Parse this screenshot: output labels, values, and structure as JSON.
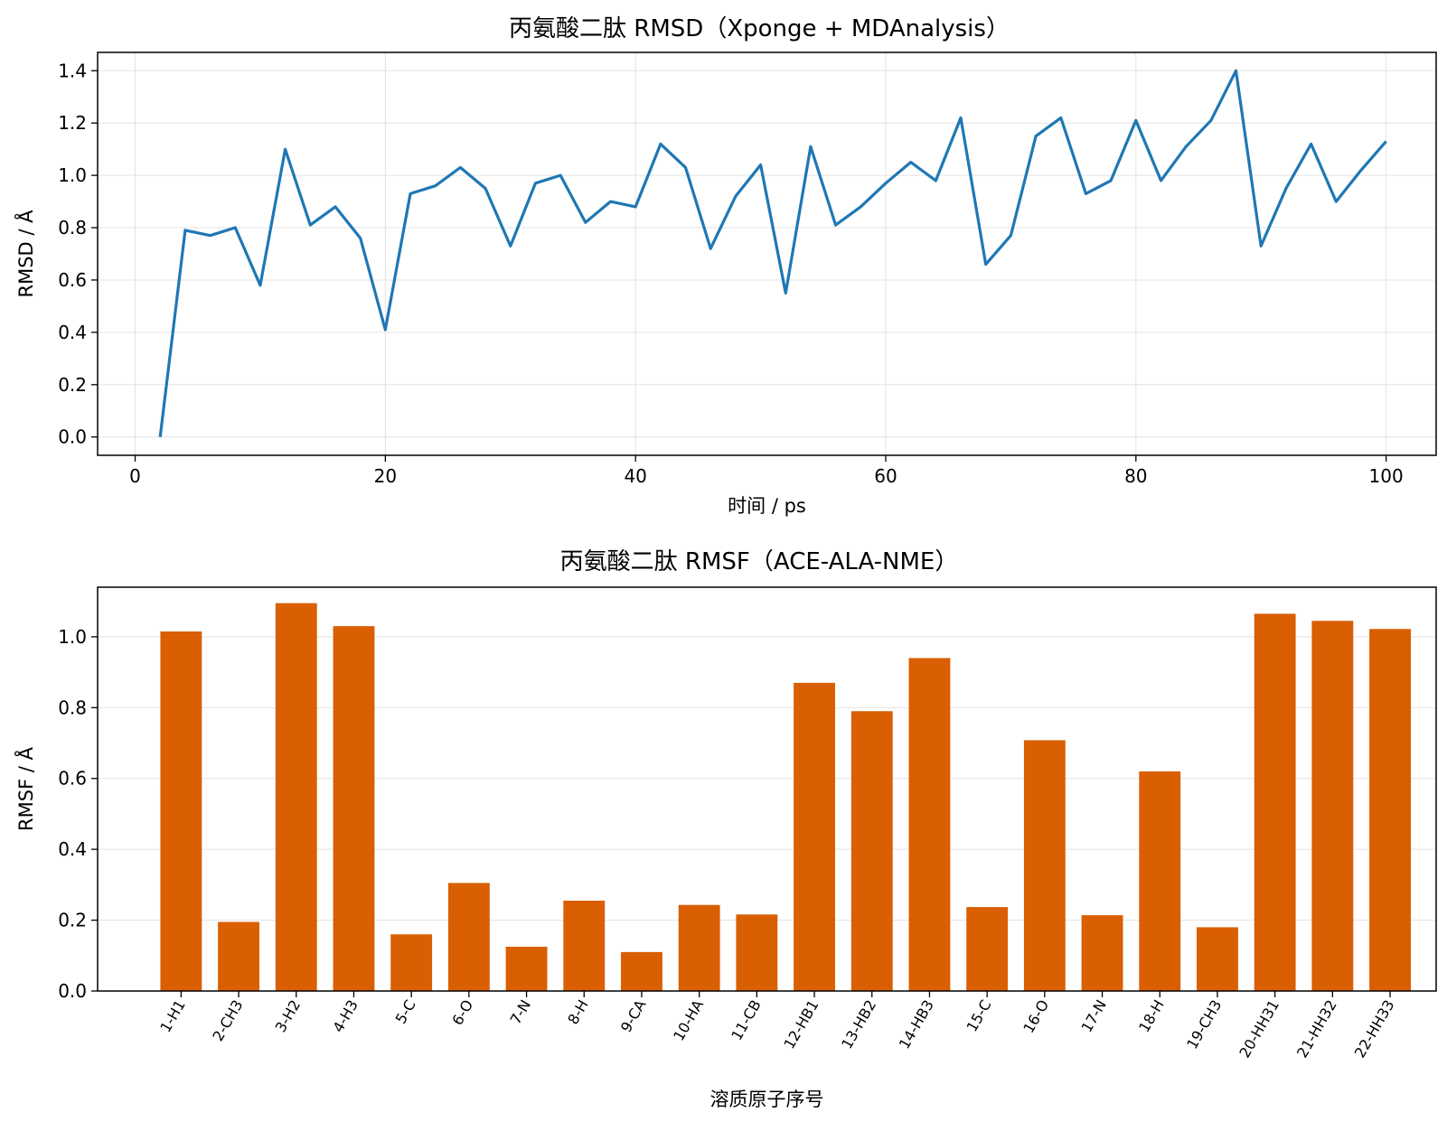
{
  "chart_data": [
    {
      "type": "line",
      "title": "丙氨酸二肽 RMSD（Xponge + MDAnalysis）",
      "xlabel": "时间 / ps",
      "ylabel": "RMSD / Å",
      "xlim": [
        -3,
        104
      ],
      "ylim": [
        -0.07,
        1.47
      ],
      "xticks": [
        0,
        20,
        40,
        60,
        80,
        100
      ],
      "yticks": [
        0.0,
        0.2,
        0.4,
        0.6,
        0.8,
        1.0,
        1.2,
        1.4
      ],
      "grid": true,
      "color": "#1f77b4",
      "x": [
        2,
        4,
        6,
        8,
        10,
        12,
        14,
        16,
        18,
        20,
        22,
        24,
        26,
        28,
        30,
        32,
        34,
        36,
        38,
        40,
        42,
        44,
        46,
        48,
        50,
        52,
        54,
        56,
        58,
        60,
        62,
        64,
        66,
        68,
        70,
        72,
        74,
        76,
        78,
        80,
        82,
        84,
        86,
        88,
        90,
        92,
        94,
        96,
        98,
        100
      ],
      "y": [
        0.0,
        0.79,
        0.77,
        0.8,
        0.58,
        1.1,
        0.81,
        0.88,
        0.76,
        0.41,
        0.93,
        0.96,
        1.03,
        0.95,
        0.73,
        0.97,
        1.0,
        0.82,
        0.9,
        0.88,
        1.12,
        1.03,
        0.72,
        0.92,
        1.04,
        0.55,
        1.11,
        0.81,
        0.88,
        0.97,
        1.05,
        0.98,
        1.22,
        0.66,
        0.77,
        1.15,
        1.22,
        0.93,
        0.98,
        1.21,
        0.98,
        1.11,
        1.21,
        1.4,
        0.73,
        0.95,
        1.12,
        0.9,
        1.02,
        1.13
      ]
    },
    {
      "type": "bar",
      "title": "丙氨酸二肽 RMSF（ACE-ALA-NME）",
      "xlabel": "溶质原子序号",
      "ylabel": "RMSF / Å",
      "ylim": [
        0,
        1.14
      ],
      "yticks": [
        0.0,
        0.2,
        0.4,
        0.6,
        0.8,
        1.0
      ],
      "grid": true,
      "color": "#d95f02",
      "categories": [
        "1-H1",
        "2-CH3",
        "3-H2",
        "4-H3",
        "5-C",
        "6-O",
        "7-N",
        "8-H",
        "9-CA",
        "10-HA",
        "11-CB",
        "12-HB1",
        "13-HB2",
        "14-HB3",
        "15-C",
        "16-O",
        "17-N",
        "18-H",
        "19-CH3",
        "20-HH31",
        "21-HH32",
        "22-HH33"
      ],
      "values": [
        1.015,
        0.195,
        1.095,
        1.03,
        0.16,
        0.305,
        0.125,
        0.255,
        0.11,
        0.243,
        0.216,
        0.87,
        0.79,
        0.94,
        0.237,
        0.708,
        0.214,
        0.62,
        0.18,
        1.065,
        1.045,
        1.022
      ]
    }
  ]
}
